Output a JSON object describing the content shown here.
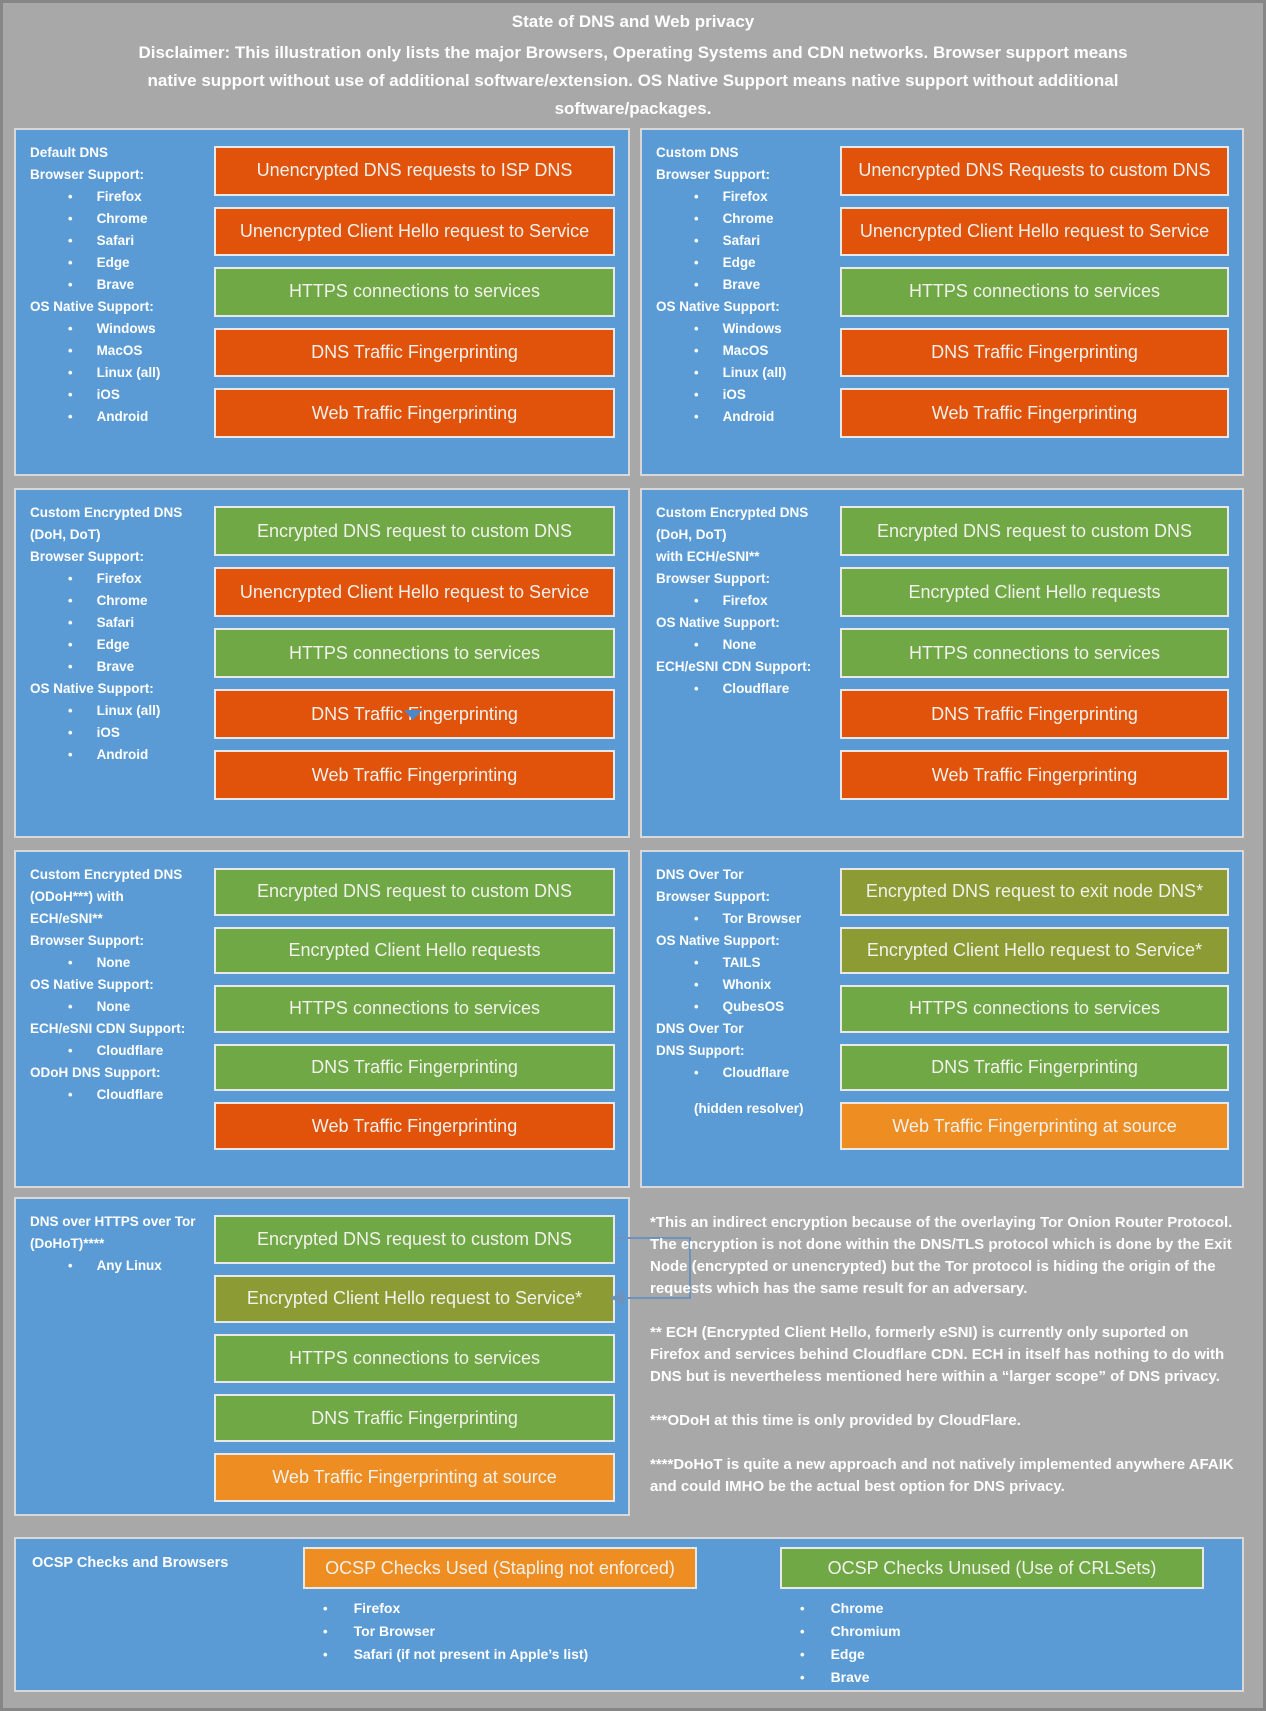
{
  "header": {
    "title": "State of DNS and Web privacy",
    "disclaimer": "Disclaimer: This illustration only lists the major Browsers, Operating Systems and CDN networks. Browser support means native support without use of additional software/extension. OS Native Support means native support without additional software/packages."
  },
  "colors": {
    "background": "#A8A8A8",
    "panel_blue": "#5B9BD5",
    "bar_orange": "#E1530B",
    "bar_green": "#6FA844",
    "bar_olive": "#8C9B33",
    "bar_amber": "#EE8D22"
  },
  "panels": [
    {
      "id": "default-dns",
      "left_lines": [
        {
          "t": "h",
          "text": "Default DNS"
        },
        {
          "t": "h",
          "text": "Browser Support:"
        },
        {
          "t": "b",
          "text": "Firefox"
        },
        {
          "t": "b",
          "text": "Chrome"
        },
        {
          "t": "b",
          "text": "Safari"
        },
        {
          "t": "b",
          "text": "Edge"
        },
        {
          "t": "b",
          "text": "Brave"
        },
        {
          "t": "h",
          "text": "OS Native Support:"
        },
        {
          "t": "b",
          "text": "Windows"
        },
        {
          "t": "b",
          "text": "MacOS"
        },
        {
          "t": "b",
          "text": "Linux (all)"
        },
        {
          "t": "b",
          "text": "iOS"
        },
        {
          "t": "b",
          "text": "Android"
        }
      ],
      "bars": [
        {
          "color": "orange",
          "label": "Unencrypted DNS requests to ISP DNS"
        },
        {
          "color": "orange",
          "label": "Unencrypted Client Hello request to Service"
        },
        {
          "color": "green",
          "label": "HTTPS connections to services"
        },
        {
          "color": "orange",
          "label": "DNS Traffic Fingerprinting"
        },
        {
          "color": "orange",
          "label": "Web Traffic Fingerprinting"
        }
      ]
    },
    {
      "id": "custom-dns",
      "left_lines": [
        {
          "t": "h",
          "text": "Custom DNS"
        },
        {
          "t": "h",
          "text": "Browser Support:"
        },
        {
          "t": "b",
          "text": "Firefox"
        },
        {
          "t": "b",
          "text": "Chrome"
        },
        {
          "t": "b",
          "text": "Safari"
        },
        {
          "t": "b",
          "text": "Edge"
        },
        {
          "t": "b",
          "text": "Brave"
        },
        {
          "t": "h",
          "text": "OS Native Support:"
        },
        {
          "t": "b",
          "text": "Windows"
        },
        {
          "t": "b",
          "text": "MacOS"
        },
        {
          "t": "b",
          "text": "Linux (all)"
        },
        {
          "t": "b",
          "text": "iOS"
        },
        {
          "t": "b",
          "text": "Android"
        }
      ],
      "bars": [
        {
          "color": "orange",
          "label": "Unencrypted DNS Requests to custom DNS"
        },
        {
          "color": "orange",
          "label": "Unencrypted Client Hello request to Service"
        },
        {
          "color": "green",
          "label": "HTTPS connections to services"
        },
        {
          "color": "orange",
          "label": "DNS Traffic Fingerprinting"
        },
        {
          "color": "orange",
          "label": "Web Traffic Fingerprinting"
        }
      ]
    },
    {
      "id": "custom-encrypted-dns-doh-dot",
      "left_lines": [
        {
          "t": "h",
          "text": "Custom Encrypted DNS"
        },
        {
          "t": "h",
          "text": "(DoH, DoT)"
        },
        {
          "t": "h",
          "text": "Browser Support:"
        },
        {
          "t": "b",
          "text": "Firefox"
        },
        {
          "t": "b",
          "text": "Chrome"
        },
        {
          "t": "b",
          "text": "Safari"
        },
        {
          "t": "b",
          "text": "Edge"
        },
        {
          "t": "b",
          "text": "Brave"
        },
        {
          "t": "h",
          "text": "OS Native Support:"
        },
        {
          "t": "b",
          "text": "Linux (all)"
        },
        {
          "t": "b",
          "text": "iOS"
        },
        {
          "t": "b",
          "text": "Android"
        }
      ],
      "bars": [
        {
          "color": "green",
          "label": "Encrypted DNS request to custom DNS"
        },
        {
          "color": "orange",
          "label": "Unencrypted Client Hello request to Service"
        },
        {
          "color": "green",
          "label": "HTTPS connections to services"
        },
        {
          "color": "orange",
          "label": "DNS Traffic Fingerprinting"
        },
        {
          "color": "orange",
          "label": "Web Traffic Fingerprinting"
        }
      ]
    },
    {
      "id": "custom-encrypted-dns-with-ech",
      "left_lines": [
        {
          "t": "h",
          "text": "Custom Encrypted DNS"
        },
        {
          "t": "h",
          "text": "(DoH, DoT)"
        },
        {
          "t": "h",
          "text": "with ECH/eSNI**"
        },
        {
          "t": "h",
          "text": "Browser Support:"
        },
        {
          "t": "b",
          "text": "Firefox"
        },
        {
          "t": "h",
          "text": "OS Native Support:"
        },
        {
          "t": "b",
          "text": "None"
        },
        {
          "t": "h",
          "text": "ECH/eSNI CDN Support:"
        },
        {
          "t": "b",
          "text": "Cloudflare"
        }
      ],
      "bars": [
        {
          "color": "green",
          "label": "Encrypted DNS request to custom DNS"
        },
        {
          "color": "green",
          "label": "Encrypted Client Hello requests"
        },
        {
          "color": "green",
          "label": "HTTPS connections to services"
        },
        {
          "color": "orange",
          "label": "DNS Traffic Fingerprinting"
        },
        {
          "color": "orange",
          "label": "Web Traffic Fingerprinting"
        }
      ]
    },
    {
      "id": "custom-encrypted-dns-odoh",
      "left_lines": [
        {
          "t": "h",
          "text": "Custom Encrypted DNS"
        },
        {
          "t": "h",
          "text": "(ODoH***) with"
        },
        {
          "t": "h",
          "text": "ECH/eSNI**"
        },
        {
          "t": "h",
          "text": "Browser Support:"
        },
        {
          "t": "b",
          "text": "None"
        },
        {
          "t": "h",
          "text": "OS Native Support:"
        },
        {
          "t": "b",
          "text": "None"
        },
        {
          "t": "h",
          "text": "ECH/eSNI CDN Support:"
        },
        {
          "t": "b",
          "text": "Cloudflare"
        },
        {
          "t": "h",
          "text": "ODoH DNS Support:"
        },
        {
          "t": "b",
          "text": "Cloudflare"
        }
      ],
      "bars": [
        {
          "color": "green",
          "label": "Encrypted DNS request to custom DNS"
        },
        {
          "color": "green",
          "label": "Encrypted Client Hello requests"
        },
        {
          "color": "green",
          "label": "HTTPS connections to services"
        },
        {
          "color": "green",
          "label": "DNS Traffic Fingerprinting"
        },
        {
          "color": "orange",
          "label": "Web Traffic Fingerprinting"
        }
      ]
    },
    {
      "id": "dns-over-tor",
      "left_lines": [
        {
          "t": "h",
          "text": "DNS Over Tor"
        },
        {
          "t": "h",
          "text": "Browser Support:"
        },
        {
          "t": "b",
          "text": "Tor Browser"
        },
        {
          "t": "h",
          "text": "OS Native Support:"
        },
        {
          "t": "b",
          "text": "TAILS"
        },
        {
          "t": "b",
          "text": "Whonix"
        },
        {
          "t": "b",
          "text": "QubesOS"
        },
        {
          "t": "h",
          "text": "DNS Over Tor"
        },
        {
          "t": "h",
          "text": "DNS Support:"
        },
        {
          "t": "b",
          "text": "Cloudflare"
        },
        {
          "t": "t",
          "text": "(hidden resolver)"
        }
      ],
      "bars": [
        {
          "color": "olive",
          "label": "Encrypted DNS request to exit node DNS*"
        },
        {
          "color": "olive",
          "label": "Encrypted Client Hello request to Service*"
        },
        {
          "color": "green",
          "label": "HTTPS connections to services"
        },
        {
          "color": "green",
          "label": "DNS Traffic Fingerprinting"
        },
        {
          "color": "amber",
          "label": "Web Traffic Fingerprinting at source"
        }
      ]
    },
    {
      "id": "dohot",
      "left_lines": [
        {
          "t": "h",
          "text": "DNS over HTTPS over Tor"
        },
        {
          "t": "h",
          "text": "(DoHoT)****"
        },
        {
          "t": "b",
          "text": "Any Linux"
        }
      ],
      "bars": [
        {
          "color": "green",
          "label": "Encrypted DNS request to custom DNS"
        },
        {
          "color": "olive",
          "label": "Encrypted Client Hello request to Service*"
        },
        {
          "color": "green",
          "label": "HTTPS connections to services"
        },
        {
          "color": "green",
          "label": "DNS Traffic Fingerprinting"
        },
        {
          "color": "amber",
          "label": "Web Traffic Fingerprinting at source"
        }
      ]
    }
  ],
  "notes": [
    "*This an indirect encryption because of the overlaying Tor Onion Router Protocol. The encryption is not done within the DNS/TLS protocol which is done by the Exit Node (encrypted or unencrypted) but the Tor protocol is hiding the origin of the requests which has the same result for an adversary.",
    "** ECH (Encrypted Client Hello, formerly eSNI) is currently only suported on Firefox and services behind Cloudflare CDN. ECH in itself has nothing to do with DNS but is nevertheless mentioned here within a “larger scope” of DNS privacy.",
    "***ODoH at this time is only provided by CloudFlare.",
    "****DoHoT is quite a new approach and not natively implemented anywhere AFAIK and could IMHO be the actual best option for DNS privacy."
  ],
  "ocsp": {
    "title": "OCSP Checks and Browsers",
    "used": {
      "label": "OCSP Checks Used (Stapling not enforced)",
      "color": "amber",
      "items": [
        "Firefox",
        "Tor Browser",
        "Safari (if not present in Apple’s list)"
      ]
    },
    "unused": {
      "label": "OCSP Checks Unused (Use of CRLSets)",
      "color": "green",
      "items": [
        "Chrome",
        "Chromium",
        "Edge",
        "Brave"
      ]
    }
  }
}
